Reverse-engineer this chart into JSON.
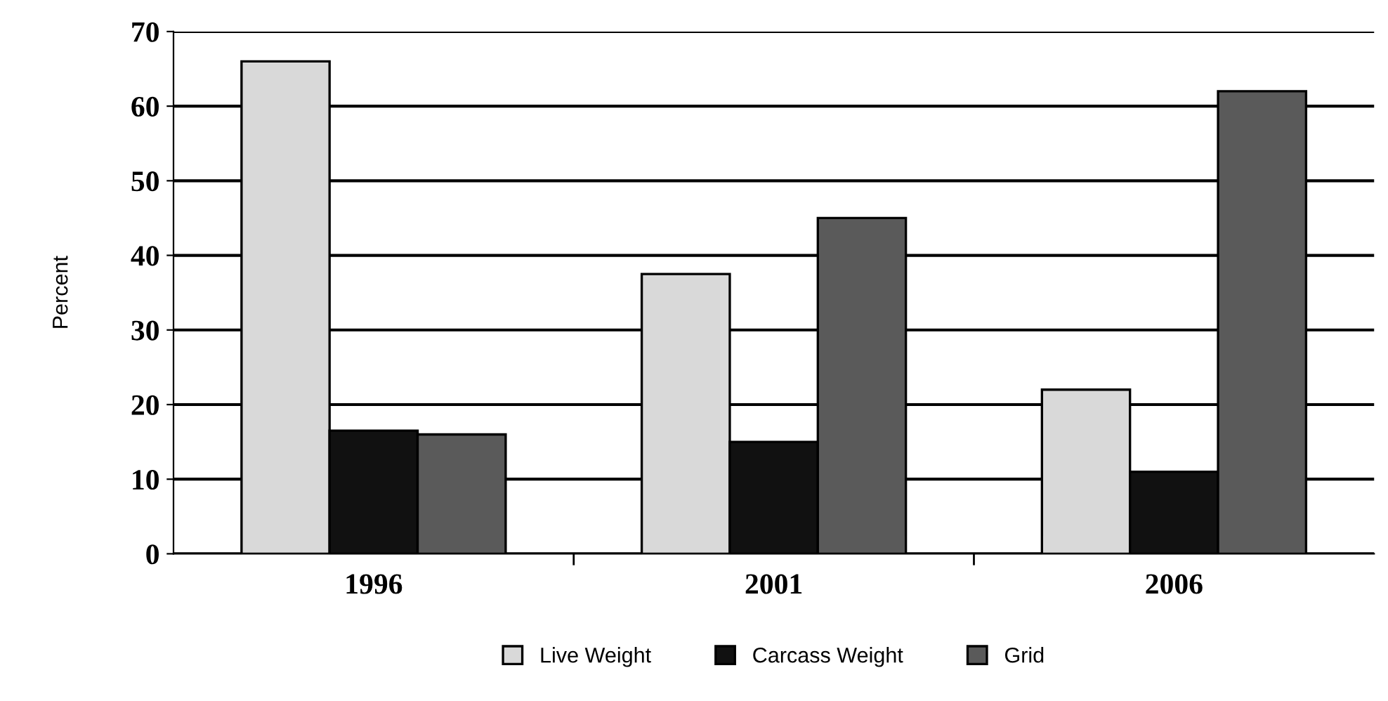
{
  "chart_data": {
    "type": "bar",
    "ylabel": "Percent",
    "categories": [
      "1996",
      "2001",
      "2006"
    ],
    "series": [
      {
        "name": "Live Weight",
        "color": "#d9d9d9",
        "values": [
          66,
          37.5,
          22
        ]
      },
      {
        "name": "Carcass Weight",
        "color": "#111111",
        "values": [
          16.5,
          15,
          11
        ]
      },
      {
        "name": "Grid",
        "color": "#5a5a5a",
        "values": [
          16,
          45,
          62
        ]
      }
    ],
    "ylim": [
      0,
      70
    ],
    "yticks": [
      0,
      10,
      20,
      30,
      40,
      50,
      60,
      70
    ],
    "grid": "y",
    "legend": "bottom"
  }
}
